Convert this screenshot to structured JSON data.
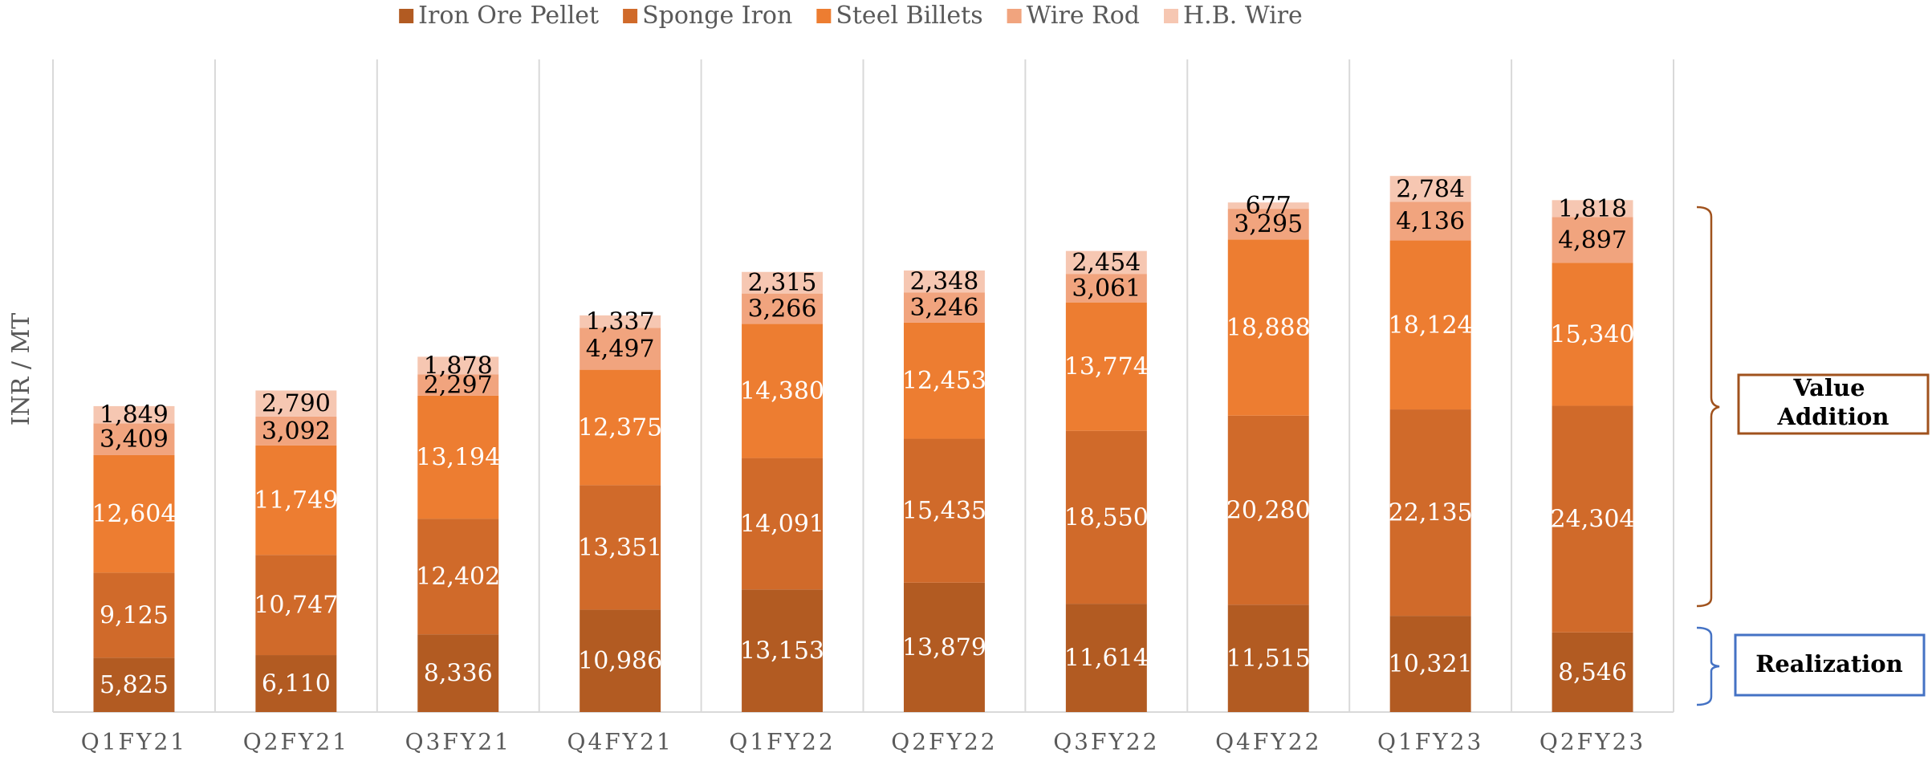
{
  "chart_data": {
    "type": "stacked_bar",
    "y_label": "INR / MT",
    "categories": [
      "Q1FY21",
      "Q2FY21",
      "Q3FY21",
      "Q4FY21",
      "Q1FY22",
      "Q2FY22",
      "Q3FY22",
      "Q4FY22",
      "Q1FY23",
      "Q2FY23"
    ],
    "series": [
      {
        "name": "Iron Ore Pellet",
        "color": "#b25b22",
        "label_color": "#ffffff",
        "values": [
          5825,
          6110,
          8336,
          10986,
          13153,
          13879,
          11614,
          11515,
          10321,
          8546
        ],
        "value_labels": [
          "5,825",
          "6,110",
          "8,336",
          "10,986",
          "13,153",
          "13,879",
          "11,614",
          "11,515",
          "10,321",
          "8,546"
        ]
      },
      {
        "name": "Sponge Iron",
        "color": "#d06a2a",
        "label_color": "#ffffff",
        "values": [
          9125,
          10747,
          12402,
          13351,
          14091,
          15435,
          18550,
          20280,
          22135,
          24304
        ],
        "value_labels": [
          "9,125",
          "10,747",
          "12,402",
          "13,351",
          "14,091",
          "15,435",
          "18,550",
          "20,280",
          "22,135",
          "24,304"
        ]
      },
      {
        "name": "Steel Billets",
        "color": "#ed7d31",
        "label_color": "#ffffff",
        "values": [
          12604,
          11749,
          13194,
          12375,
          14380,
          12453,
          13774,
          18888,
          18124,
          15340
        ],
        "value_labels": [
          "12,604",
          "11,749",
          "13,194",
          "12,375",
          "14,380",
          "12,453",
          "13,774",
          "18,888",
          "18,124",
          "15,340"
        ]
      },
      {
        "name": "Wire Rod",
        "color": "#f1a47e",
        "label_color": "#000000",
        "values": [
          3409,
          3092,
          2297,
          4497,
          3266,
          3246,
          3061,
          3295,
          4136,
          4897
        ],
        "value_labels": [
          "3,409",
          "3,092",
          "2,297",
          "4,497",
          "3,266",
          "3,246",
          "3,061",
          "3,295",
          "4,136",
          "4,897"
        ]
      },
      {
        "name": "H.B. Wire",
        "color": "#f6c7b2",
        "label_color": "#000000",
        "values": [
          1849,
          2790,
          1878,
          1337,
          2315,
          2348,
          2454,
          677,
          2784,
          1818
        ],
        "value_labels": [
          "1,849",
          "2,790",
          "1,878",
          "1,337",
          "2,315",
          "2,348",
          "2,454",
          "677",
          "2,784",
          "1,818"
        ]
      }
    ],
    "ylim": [
      0,
      70000
    ],
    "legend": "top",
    "annotations": [
      "Value Addition",
      "Realization"
    ]
  }
}
